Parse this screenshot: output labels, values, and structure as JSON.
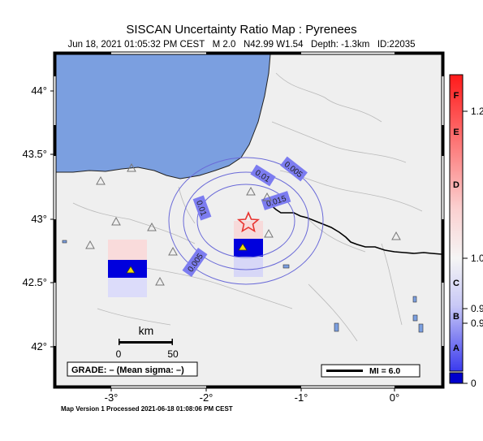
{
  "map": {
    "title": "SISCAN Uncertainty Ratio Map : Pyrenees",
    "subtitle": "Jun 18, 2021 01:05:32 PM CEST   M 2.0   N42.99 W1.54   Depth: -1.3km   ID:22035",
    "footer": "Map Version 1 Processed 2021-06-18 01:08:06 PM CEST",
    "lat_ticks": [
      "44°",
      "43.5°",
      "43°",
      "42.5°",
      "42°"
    ],
    "lon_ticks": [
      "-3°",
      "-2°",
      "-1°",
      "0°"
    ],
    "contour_labels": [
      "0.005",
      "0.01",
      "0.015",
      "0.01",
      "0.005"
    ],
    "scalebar": {
      "unit": "km",
      "start": "0",
      "end": "50"
    },
    "grade": "GRADE: – (Mean sigma: –)",
    "mi_legend": "MI = 6.0",
    "colors": {
      "sea": "#7b9fe0",
      "land": "#efefef",
      "epicenter": "#e8332f",
      "high_ratio": "#ff0000",
      "low_ratio": "#0000dd"
    }
  },
  "colorbar": {
    "grades": [
      "F",
      "E",
      "D",
      "C",
      "B",
      "A"
    ],
    "values": [
      "1.2",
      "1.0",
      "0.9",
      "0.9",
      "0"
    ]
  }
}
